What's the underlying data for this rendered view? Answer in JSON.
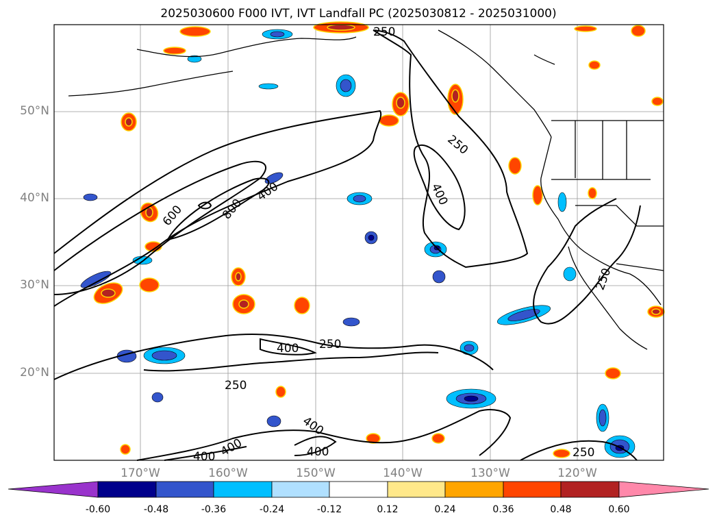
{
  "title": "2025030600 F000 IVT, IVT Landfall PC (2025030812 - 2025031000)",
  "lat_labels": [
    "50°N",
    "40°N",
    "30°N",
    "20°N"
  ],
  "lon_labels": [
    "170°W",
    "160°W",
    "150°W",
    "140°W",
    "130°W",
    "120°W"
  ],
  "contour_labels": [
    "250",
    "250",
    "400",
    "600",
    "800",
    "400",
    "400",
    "250",
    "250",
    "250",
    "400",
    "400",
    "400",
    "400",
    "250",
    "400"
  ],
  "colorbar": {
    "ticks": [
      "-0.60",
      "-0.48",
      "-0.36",
      "-0.24",
      "-0.12",
      "0.12",
      "0.24",
      "0.36",
      "0.48",
      "0.60"
    ],
    "colors": [
      "#9933cc",
      "#00008b",
      "#3355cc",
      "#00bfff",
      "#b0e0ff",
      "#ffffff",
      "#ffe88a",
      "#ffa500",
      "#ff4500",
      "#b22222",
      "#ff88aa"
    ]
  },
  "colors": {
    "positive_light": "#ffe88a",
    "positive_mid": "#ffa500",
    "positive_strong": "#ff4500",
    "positive_max": "#b22222",
    "negative_light": "#b0e0ff",
    "negative_mid": "#00bfff",
    "negative_strong": "#3355cc",
    "negative_max": "#00008b"
  }
}
